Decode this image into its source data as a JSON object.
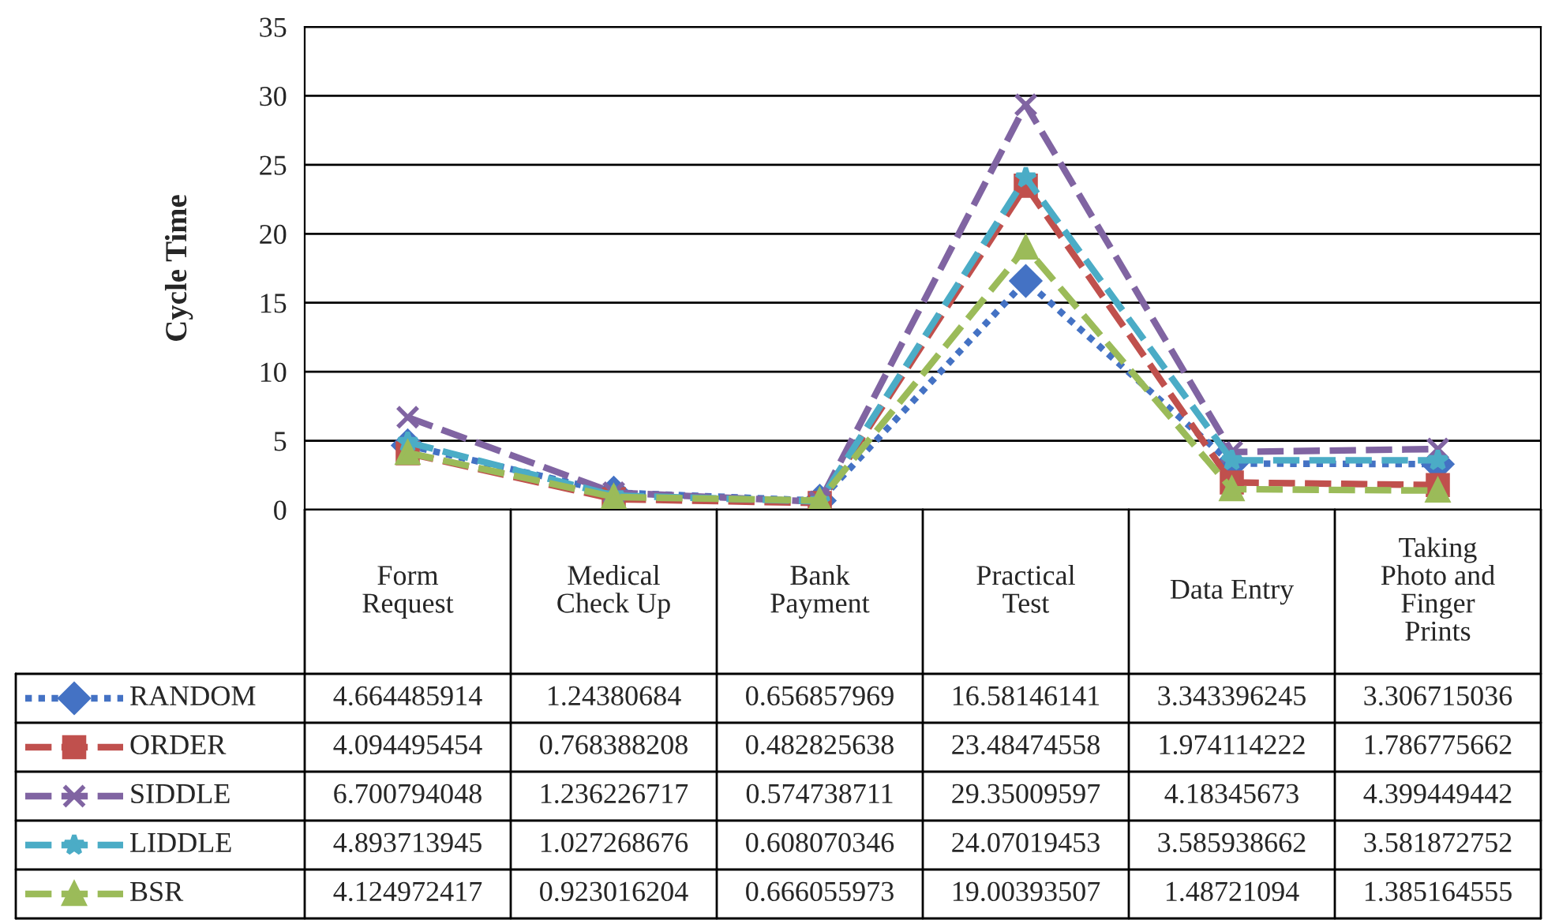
{
  "chart_data": {
    "type": "line",
    "ylabel": "Cycle Time",
    "categories": [
      "Form Request",
      "Medical Check Up",
      "Bank Payment",
      "Practical Test",
      "Data Entry",
      "Taking Photo and Finger Prints"
    ],
    "series": [
      {
        "name": "RANDOM",
        "color": "#4472c4",
        "marker": "diamond",
        "line_style": "dotted",
        "values": [
          4.664485914,
          1.24380684,
          0.656857969,
          16.58146141,
          3.343396245,
          3.306715036
        ]
      },
      {
        "name": "ORDER",
        "color": "#c0504d",
        "marker": "square",
        "line_style": "dashed",
        "values": [
          4.094495454,
          0.768388208,
          0.482825638,
          23.48474558,
          1.974114222,
          1.786775662
        ]
      },
      {
        "name": "SIDDLE",
        "color": "#8064a2",
        "marker": "cross",
        "line_style": "dashed",
        "values": [
          6.700794048,
          1.236226717,
          0.574738711,
          29.35009597,
          4.18345673,
          4.399449442
        ]
      },
      {
        "name": "LIDDLE",
        "color": "#4bacc6",
        "marker": "star",
        "line_style": "dashed",
        "values": [
          4.893713945,
          1.027268676,
          0.608070346,
          24.07019453,
          3.585938662,
          3.581872752
        ]
      },
      {
        "name": "BSR",
        "color": "#9bbb59",
        "marker": "triangle",
        "line_style": "dashed",
        "values": [
          4.124972417,
          0.923016204,
          0.666055973,
          19.00393507,
          1.48721094,
          1.385164555
        ]
      }
    ],
    "ylim": [
      0,
      35
    ],
    "yticks": [
      0,
      5,
      10,
      15,
      20,
      25,
      30,
      35
    ],
    "grid": "y",
    "legend": "bottom",
    "data_labels": true
  }
}
